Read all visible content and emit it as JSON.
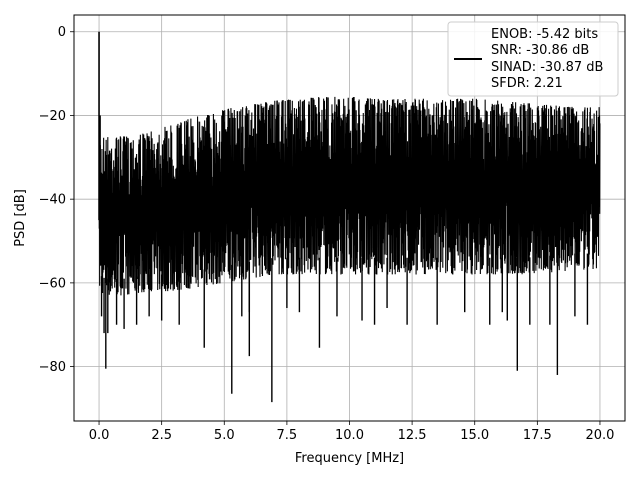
{
  "chart_data": {
    "type": "line",
    "xlabel": "Frequency [MHz]",
    "ylabel": "PSD [dB]",
    "xlim": [
      -1.0,
      21.0
    ],
    "ylim": [
      -93,
      4
    ],
    "grid": true,
    "x_ticks": [
      0.0,
      2.5,
      5.0,
      7.5,
      10.0,
      12.5,
      15.0,
      17.5,
      20.0
    ],
    "x_tick_labels": [
      "0.0",
      "2.5",
      "5.0",
      "7.5",
      "10.0",
      "12.5",
      "15.0",
      "17.5",
      "20.0"
    ],
    "y_ticks": [
      0,
      -20,
      -40,
      -60,
      -80
    ],
    "y_tick_labels": [
      "0",
      "−20",
      "−40",
      "−60",
      "−80"
    ],
    "legend": {
      "placement": "top-right",
      "entries": [
        "ENOB: -5.42 bits",
        "SNR: -30.86 dB",
        "SINAD: -30.87 dB",
        "SFDR: 2.21"
      ]
    },
    "series": [
      {
        "color": "#000000",
        "envelope": {
          "x": [
            0.0,
            0.25,
            1.0,
            2.0,
            3.0,
            4.0,
            5.0,
            6.0,
            7.0,
            8.0,
            9.0,
            10.0,
            11.0,
            12.0,
            13.0,
            14.0,
            15.0,
            16.0,
            17.0,
            18.0,
            19.0,
            20.0
          ],
          "upper": [
            -24,
            -25,
            -25,
            -24,
            -22,
            -20,
            -18.5,
            -17.5,
            -16.5,
            -16,
            -15.5,
            -15.5,
            -16,
            -16,
            -16,
            -16,
            -16,
            -16.5,
            -17,
            -17.5,
            -18,
            -18
          ],
          "lower": [
            -62,
            -63,
            -63,
            -62,
            -62,
            -61,
            -60,
            -59,
            -58,
            -58,
            -58,
            -58,
            -58,
            -58,
            -58,
            -58,
            -58,
            -58,
            -58,
            -57.5,
            -57,
            -57
          ]
        },
        "peaks": [
          {
            "x": 0.0,
            "y": 0.0
          },
          {
            "x": 0.04,
            "y": -20.0
          }
        ],
        "dips": [
          {
            "x": 0.1,
            "y": -68
          },
          {
            "x": 0.2,
            "y": -72
          },
          {
            "x": 0.27,
            "y": -80.5
          },
          {
            "x": 0.35,
            "y": -72
          },
          {
            "x": 0.7,
            "y": -70
          },
          {
            "x": 1.0,
            "y": -71
          },
          {
            "x": 1.5,
            "y": -70
          },
          {
            "x": 2.0,
            "y": -68
          },
          {
            "x": 2.5,
            "y": -69
          },
          {
            "x": 3.2,
            "y": -70
          },
          {
            "x": 4.2,
            "y": -75.5
          },
          {
            "x": 5.3,
            "y": -86.5
          },
          {
            "x": 5.7,
            "y": -68
          },
          {
            "x": 6.0,
            "y": -67
          },
          {
            "x": 6.0,
            "y": -77.5
          },
          {
            "x": 6.9,
            "y": -88.5
          },
          {
            "x": 7.5,
            "y": -66
          },
          {
            "x": 8.0,
            "y": -67
          },
          {
            "x": 8.8,
            "y": -75.5
          },
          {
            "x": 9.5,
            "y": -68
          },
          {
            "x": 10.5,
            "y": -69
          },
          {
            "x": 11.0,
            "y": -70
          },
          {
            "x": 11.5,
            "y": -66
          },
          {
            "x": 12.3,
            "y": -70
          },
          {
            "x": 13.5,
            "y": -70
          },
          {
            "x": 14.6,
            "y": -67
          },
          {
            "x": 15.6,
            "y": -70
          },
          {
            "x": 16.1,
            "y": -67
          },
          {
            "x": 16.3,
            "y": -69
          },
          {
            "x": 16.7,
            "y": -81
          },
          {
            "x": 17.2,
            "y": -70
          },
          {
            "x": 18.0,
            "y": -70
          },
          {
            "x": 18.3,
            "y": -82
          },
          {
            "x": 19.0,
            "y": -68
          },
          {
            "x": 19.5,
            "y": -70
          }
        ]
      }
    ]
  }
}
